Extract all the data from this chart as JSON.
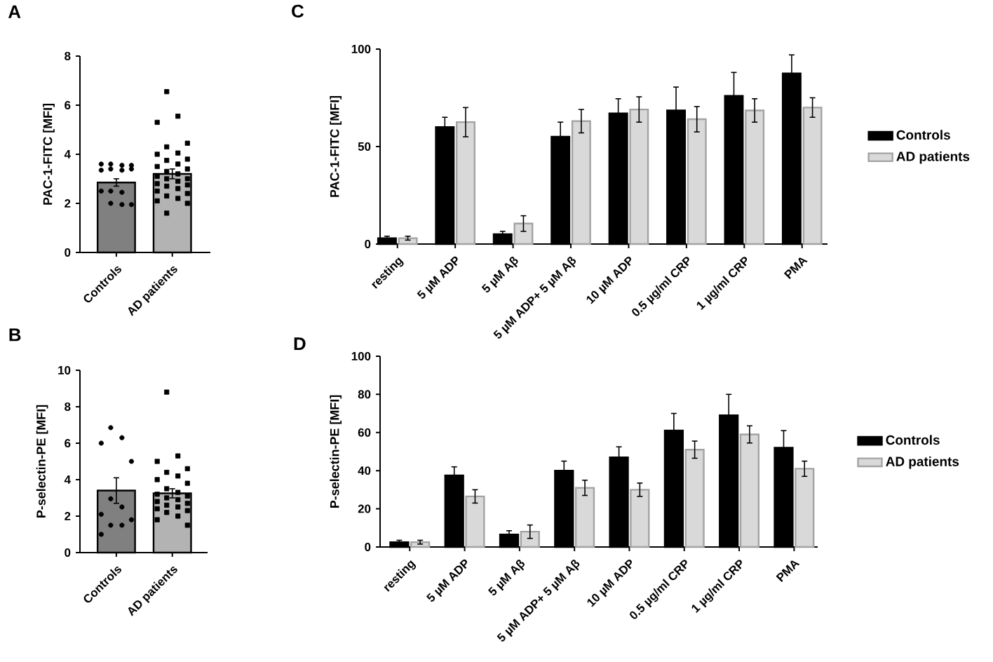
{
  "chart_data": [
    {
      "type": "bar",
      "title": "A",
      "ylabel": "PAC-1-FITC [MFI]",
      "categories": [
        "Controls",
        "AD patients"
      ],
      "ylim": [
        0,
        8
      ],
      "yticks": [
        0,
        2,
        4,
        6,
        8
      ],
      "series": [
        {
          "values": [
            2.85,
            3.2
          ],
          "errors": [
            0.15,
            0.2
          ],
          "colors": [
            "#808080",
            "#b3b3b3"
          ]
        },
        {
          "type": "scatter",
          "marker": "circle",
          "color": "#000000",
          "x": [
            "Controls",
            "Controls",
            "Controls",
            "Controls",
            "Controls",
            "Controls",
            "Controls",
            "Controls",
            "Controls",
            "Controls",
            "Controls",
            "Controls",
            "Controls",
            "Controls"
          ],
          "values": [
            3.6,
            3.55,
            3.6,
            3.55,
            3.4,
            3.35,
            3.35,
            3.4,
            2.5,
            2.45,
            2.5,
            1.95,
            2.0,
            1.95
          ]
        },
        {
          "type": "scatter",
          "marker": "square",
          "color": "#000000",
          "x": [
            "AD patients",
            "AD patients",
            "AD patients",
            "AD patients",
            "AD patients",
            "AD patients",
            "AD patients",
            "AD patients",
            "AD patients",
            "AD patients",
            "AD patients",
            "AD patients",
            "AD patients",
            "AD patients",
            "AD patients",
            "AD patients",
            "AD patients",
            "AD patients",
            "AD patients",
            "AD patients",
            "AD patients",
            "AD patients",
            "AD patients",
            "AD patients",
            "AD patients",
            "AD patients",
            "AD patients",
            "AD patients",
            "AD patients"
          ],
          "values": [
            6.55,
            5.55,
            5.3,
            4.45,
            4.3,
            4.05,
            4.0,
            3.8,
            3.75,
            3.6,
            3.5,
            3.4,
            3.3,
            3.2,
            3.1,
            3.0,
            3.0,
            2.9,
            2.8,
            2.75,
            2.7,
            2.6,
            2.5,
            2.4,
            2.3,
            2.2,
            2.1,
            2.0,
            1.6
          ]
        }
      ]
    },
    {
      "type": "bar",
      "title": "B",
      "ylabel": "P-selectin-PE [MFI]",
      "categories": [
        "Controls",
        "AD patients"
      ],
      "ylim": [
        0,
        10
      ],
      "yticks": [
        0,
        2,
        4,
        6,
        8,
        10
      ],
      "series": [
        {
          "values": [
            3.4,
            3.25
          ],
          "errors": [
            0.7,
            0.25
          ],
          "colors": [
            "#808080",
            "#b3b3b3"
          ]
        },
        {
          "type": "scatter",
          "marker": "circle",
          "color": "#000000",
          "x": [
            "Controls",
            "Controls",
            "Controls",
            "Controls",
            "Controls",
            "Controls",
            "Controls",
            "Controls",
            "Controls",
            "Controls",
            "Controls"
          ],
          "values": [
            6.85,
            6.3,
            6.0,
            5.0,
            2.95,
            2.5,
            2.1,
            1.8,
            1.5,
            1.5,
            1.0
          ]
        },
        {
          "type": "scatter",
          "marker": "square",
          "color": "#000000",
          "x": [
            "AD patients",
            "AD patients",
            "AD patients",
            "AD patients",
            "AD patients",
            "AD patients",
            "AD patients",
            "AD patients",
            "AD patients",
            "AD patients",
            "AD patients",
            "AD patients",
            "AD patients",
            "AD patients",
            "AD patients",
            "AD patients",
            "AD patients",
            "AD patients",
            "AD patients",
            "AD patients",
            "AD patients",
            "AD patients",
            "AD patients",
            "AD patients"
          ],
          "values": [
            8.8,
            5.3,
            5.0,
            4.6,
            4.4,
            4.2,
            4.0,
            3.8,
            3.5,
            3.3,
            3.2,
            3.1,
            3.0,
            2.9,
            2.8,
            2.7,
            2.6,
            2.5,
            2.4,
            2.3,
            2.2,
            2.0,
            1.8,
            1.5
          ]
        }
      ]
    },
    {
      "type": "bar",
      "title": "C",
      "ylabel": "PAC-1-FITC [MFI]",
      "legend": "right",
      "categories": [
        "resting",
        "5 µM ADP",
        "5 µM Aβ",
        "5 µM ADP+ 5 µM Aβ",
        "10 µM ADP",
        "0.5 µg/ml CRP",
        "1 µg/ml CRP",
        "PMA"
      ],
      "ylim": [
        0,
        100
      ],
      "yticks": [
        0,
        50,
        100
      ],
      "series": [
        {
          "name": "Controls",
          "color": "#000000",
          "values": [
            3,
            60,
            5,
            55,
            67,
            68.5,
            76,
            87.5
          ],
          "errors": [
            1,
            5,
            1.5,
            7.5,
            7.5,
            12,
            12,
            9.5
          ]
        },
        {
          "name": "AD patients",
          "color": "#d9d9d9",
          "values": [
            3,
            62.5,
            10.5,
            63,
            69,
            64,
            68.5,
            70
          ],
          "errors": [
            1,
            7.5,
            4,
            6,
            6.5,
            6.5,
            6,
            5
          ]
        }
      ]
    },
    {
      "type": "bar",
      "title": "D",
      "ylabel": "P-selectin-PE [MFI]",
      "legend": "right",
      "categories": [
        "resting",
        "5 µM ADP",
        "5 µM Aβ",
        "5 µM ADP+ 5 µM Aβ",
        "10 µM ADP",
        "0.5 µg/ml CRP",
        "1 µg/ml CRP",
        "PMA"
      ],
      "ylim": [
        0,
        100
      ],
      "yticks": [
        0,
        20,
        40,
        60,
        80,
        100
      ],
      "series": [
        {
          "name": "Controls",
          "color": "#000000",
          "values": [
            2.5,
            37.5,
            6.5,
            40,
            47,
            61,
            69,
            52
          ],
          "errors": [
            1,
            4.5,
            2,
            5,
            5.5,
            9,
            11,
            9
          ]
        },
        {
          "name": "AD patients",
          "color": "#d9d9d9",
          "values": [
            2.5,
            26.5,
            8,
            31,
            30,
            51,
            59,
            41
          ],
          "errors": [
            1,
            3.5,
            3.5,
            4,
            3.5,
            4.5,
            4.5,
            4
          ]
        }
      ]
    }
  ]
}
